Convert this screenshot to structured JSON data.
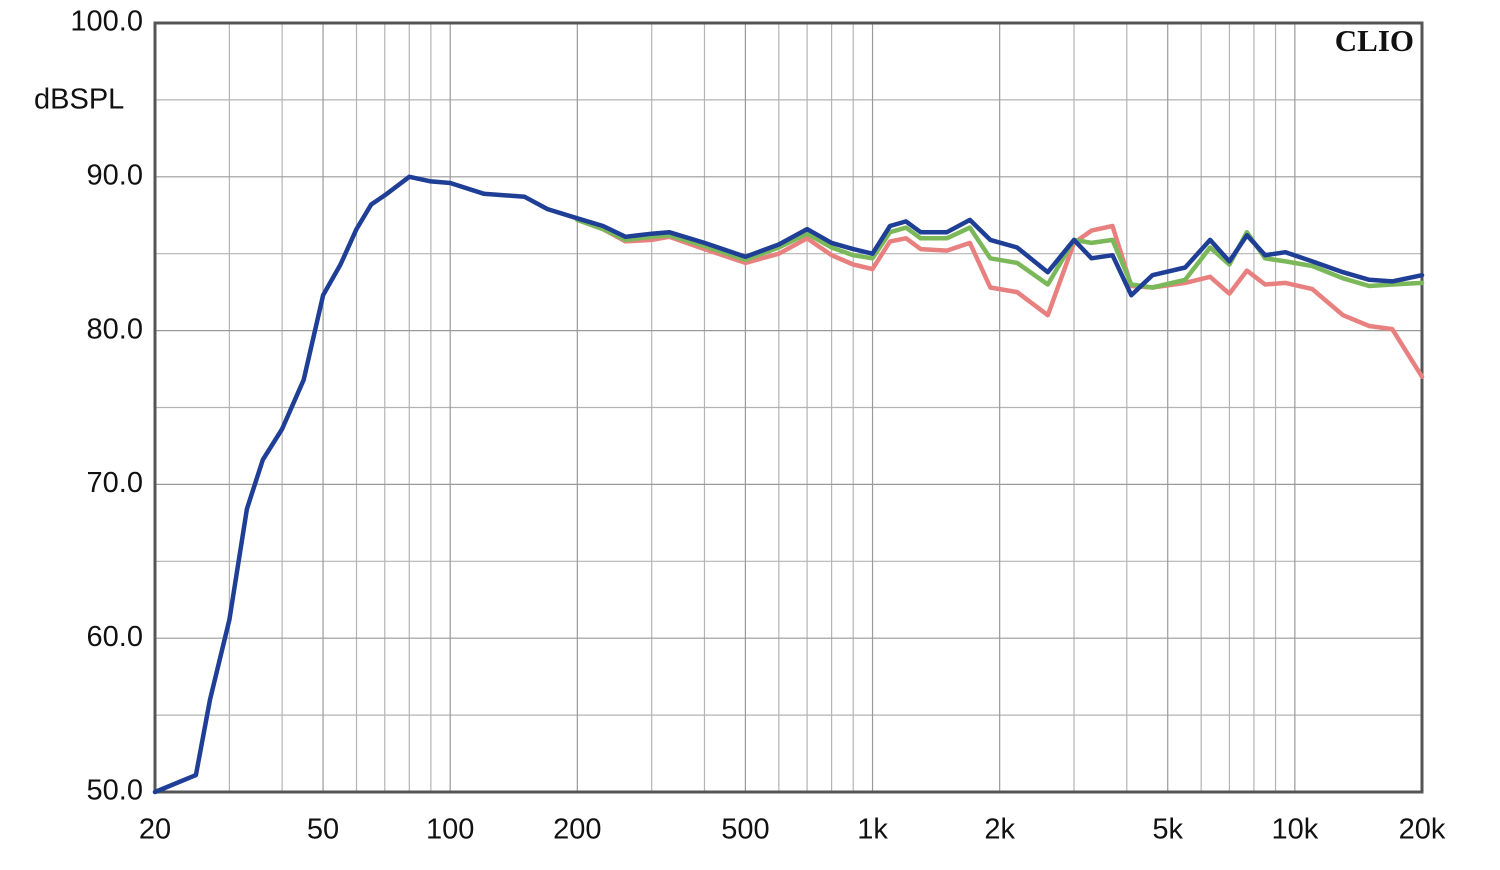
{
  "chart_data": {
    "type": "line",
    "y_label": "dBSPL",
    "annotation": "CLIO",
    "x_scale": "log",
    "grid": true,
    "xlim": [
      20,
      20000
    ],
    "xticks": [
      20,
      50,
      100,
      200,
      500,
      {
        "value": 1000,
        "label": "1k"
      },
      {
        "value": 2000,
        "label": "2k"
      },
      {
        "value": 5000,
        "label": "5k"
      },
      {
        "value": 10000,
        "label": "10k"
      },
      {
        "value": 20000,
        "label": "20k"
      }
    ],
    "x_minor_ticks": [
      30,
      40,
      60,
      70,
      80,
      90,
      300,
      400,
      600,
      700,
      800,
      900,
      3000,
      4000,
      6000,
      7000,
      8000,
      9000
    ],
    "ylim": [
      50,
      100
    ],
    "yticks": [
      {
        "value": 50,
        "label": "50.0"
      },
      {
        "value": 60,
        "label": "60.0"
      },
      {
        "value": 70,
        "label": "70.0"
      },
      {
        "value": 80,
        "label": "80.0"
      },
      {
        "value": 90,
        "label": "90.0"
      },
      {
        "value": 100,
        "label": "100.0"
      }
    ],
    "y_minor_ticks": [
      55,
      65,
      75,
      85,
      95
    ],
    "x": [
      20,
      25,
      27,
      30,
      33,
      36,
      40,
      45,
      50,
      55,
      60,
      65,
      70,
      80,
      90,
      100,
      120,
      150,
      170,
      200,
      230,
      260,
      300,
      330,
      400,
      500,
      600,
      700,
      800,
      900,
      1000,
      1100,
      1200,
      1300,
      1500,
      1700,
      1900,
      2200,
      2600,
      3000,
      3300,
      3700,
      4100,
      4600,
      5500,
      6300,
      7000,
      7700,
      8500,
      9500,
      11000,
      13000,
      15000,
      17000,
      20000
    ],
    "series": [
      {
        "color": "#e88080",
        "values": [
          null,
          null,
          null,
          null,
          null,
          null,
          null,
          null,
          null,
          null,
          null,
          null,
          null,
          null,
          null,
          null,
          null,
          null,
          null,
          87.2,
          86.6,
          85.8,
          85.9,
          86.1,
          85.3,
          84.4,
          85.0,
          86.0,
          84.9,
          84.3,
          84.0,
          85.8,
          86.0,
          85.3,
          85.2,
          85.7,
          82.8,
          82.5,
          81.0,
          85.7,
          86.5,
          86.8,
          82.9,
          82.8,
          83.1,
          83.5,
          82.4,
          83.9,
          83.0,
          83.1,
          82.7,
          81.0,
          80.3,
          80.1,
          77.0
        ]
      },
      {
        "color": "#7ab85a",
        "values": [
          null,
          null,
          null,
          null,
          null,
          null,
          null,
          null,
          null,
          null,
          null,
          null,
          null,
          null,
          null,
          null,
          null,
          null,
          null,
          87.2,
          86.6,
          85.9,
          86.1,
          86.2,
          85.5,
          84.6,
          85.4,
          86.3,
          85.4,
          84.9,
          84.7,
          86.4,
          86.7,
          86.0,
          86.0,
          86.7,
          84.7,
          84.4,
          83.0,
          85.9,
          85.7,
          85.9,
          83.0,
          82.8,
          83.3,
          85.4,
          84.3,
          86.4,
          84.7,
          84.5,
          84.2,
          83.4,
          82.9,
          83.0,
          83.1
        ]
      },
      {
        "color": "#1f3f96",
        "values": [
          50.0,
          51.1,
          56.0,
          61.2,
          68.4,
          71.6,
          73.6,
          76.8,
          82.3,
          84.3,
          86.6,
          88.2,
          88.8,
          90.0,
          89.7,
          89.6,
          88.9,
          88.7,
          87.9,
          87.3,
          86.8,
          86.1,
          86.3,
          86.4,
          85.7,
          84.8,
          85.6,
          86.6,
          85.7,
          85.3,
          85.0,
          86.8,
          87.1,
          86.4,
          86.4,
          87.2,
          85.9,
          85.4,
          83.8,
          85.9,
          84.7,
          84.9,
          82.3,
          83.6,
          84.1,
          85.9,
          84.5,
          86.2,
          84.9,
          85.1,
          84.5,
          83.8,
          83.3,
          83.2,
          83.6
        ]
      }
    ]
  }
}
